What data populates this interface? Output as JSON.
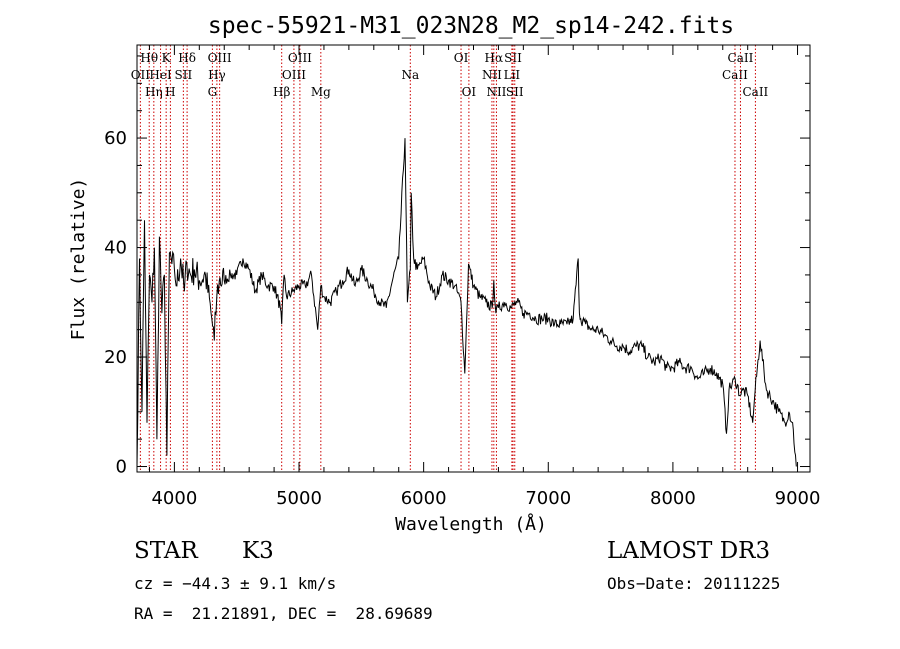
{
  "chart_data": {
    "type": "line",
    "title": "spec-55921-M31_023N28_M2_sp14-242.fits",
    "xlabel": "Wavelength (Å)",
    "ylabel": "Flux (relative)",
    "xlim": [
      3700,
      9100
    ],
    "ylim": [
      -1,
      77
    ],
    "xticks": [
      4000,
      5000,
      6000,
      7000,
      8000,
      9000
    ],
    "yticks": [
      0,
      20,
      40,
      60
    ],
    "series": [
      {
        "name": "flux",
        "x": [
          3700,
          3720,
          3740,
          3760,
          3780,
          3800,
          3820,
          3840,
          3860,
          3880,
          3900,
          3920,
          3940,
          3960,
          3980,
          4000,
          4020,
          4050,
          4080,
          4100,
          4130,
          4160,
          4200,
          4250,
          4300,
          4320,
          4340,
          4360,
          4400,
          4450,
          4500,
          4550,
          4600,
          4650,
          4700,
          4750,
          4800,
          4850,
          4861,
          4880,
          4900,
          4950,
          5000,
          5050,
          5100,
          5150,
          5175,
          5200,
          5250,
          5300,
          5350,
          5400,
          5450,
          5500,
          5550,
          5600,
          5650,
          5700,
          5750,
          5800,
          5850,
          5870,
          5893,
          5900,
          5920,
          5950,
          6000,
          6050,
          6100,
          6150,
          6200,
          6250,
          6300,
          6330,
          6360,
          6400,
          6450,
          6500,
          6550,
          6563,
          6580,
          6600,
          6650,
          6700,
          6750,
          6800,
          6850,
          6900,
          6950,
          7000,
          7050,
          7100,
          7150,
          7200,
          7240,
          7250,
          7260,
          7300,
          7350,
          7400,
          7450,
          7500,
          7550,
          7600,
          7650,
          7700,
          7750,
          7800,
          7850,
          7900,
          7950,
          8000,
          8050,
          8100,
          8150,
          8200,
          8250,
          8300,
          8350,
          8400,
          8430,
          8450,
          8500,
          8540,
          8560,
          8600,
          8640,
          8660,
          8700,
          8750,
          8800,
          8850,
          8900,
          8930,
          8960,
          8990
        ],
        "values": [
          0,
          38,
          10,
          45,
          8,
          35,
          30,
          40,
          5,
          42,
          28,
          35,
          2,
          39,
          37,
          36,
          33,
          38,
          32,
          37,
          35,
          36,
          34,
          35,
          27,
          23,
          31,
          34,
          34,
          35,
          35,
          38,
          36,
          32,
          35,
          33,
          33,
          29,
          26,
          35,
          31,
          32,
          33,
          33,
          35,
          25,
          33,
          31,
          30,
          32,
          34,
          36,
          33,
          36,
          34,
          32,
          30,
          29,
          34,
          38,
          60,
          30,
          36,
          50,
          38,
          36,
          38,
          33,
          31,
          35,
          34,
          33,
          30,
          17,
          37,
          33,
          31,
          30,
          29,
          34,
          28,
          29,
          30,
          29,
          30,
          28,
          28,
          27,
          27,
          27,
          26,
          26,
          26,
          27,
          38,
          28,
          27,
          26,
          25,
          25,
          24,
          23,
          22,
          22,
          21,
          22,
          22,
          20,
          19,
          20,
          18,
          18,
          19,
          18,
          18,
          16,
          17,
          18,
          17,
          15,
          6,
          14,
          16,
          13,
          14,
          13,
          8,
          14,
          23,
          14,
          12,
          10,
          8,
          10,
          8,
          0
        ]
      }
    ],
    "spectral_lines": [
      {
        "label": "OII",
        "wavelength": 3727,
        "row": 2
      },
      {
        "label": "Hθ",
        "wavelength": 3798,
        "row": 1
      },
      {
        "label": "Hη",
        "wavelength": 3835,
        "row": 3
      },
      {
        "label": "HeI",
        "wavelength": 3889,
        "row": 2
      },
      {
        "label": "K",
        "wavelength": 3934,
        "row": 1
      },
      {
        "label": "H",
        "wavelength": 3968,
        "row": 3
      },
      {
        "label": "SII",
        "wavelength": 4072,
        "row": 2
      },
      {
        "label": "Hδ",
        "wavelength": 4102,
        "row": 1
      },
      {
        "label": "G",
        "wavelength": 4305,
        "row": 3
      },
      {
        "label": "Hγ",
        "wavelength": 4341,
        "row": 2
      },
      {
        "label": "OIII",
        "wavelength": 4363,
        "row": 1
      },
      {
        "label": "Hβ",
        "wavelength": 4861,
        "row": 3
      },
      {
        "label": "OIII",
        "wavelength": 4959,
        "row": 2
      },
      {
        "label": "OIII",
        "wavelength": 5007,
        "row": 1
      },
      {
        "label": "Mg",
        "wavelength": 5175,
        "row": 3
      },
      {
        "label": "Na",
        "wavelength": 5893,
        "row": 2
      },
      {
        "label": "OI",
        "wavelength": 6300,
        "row": 1
      },
      {
        "label": "OI",
        "wavelength": 6363,
        "row": 3
      },
      {
        "label": "NII",
        "wavelength": 6548,
        "row": 2
      },
      {
        "label": "Hα",
        "wavelength": 6563,
        "row": 1
      },
      {
        "label": "NII",
        "wavelength": 6584,
        "row": 3
      },
      {
        "label": "SII",
        "wavelength": 6717,
        "row": 1
      },
      {
        "label": "LiI",
        "wavelength": 6708,
        "row": 2
      },
      {
        "label": "SII",
        "wavelength": 6731,
        "row": 3
      },
      {
        "label": "CaII",
        "wavelength": 8498,
        "row": 2
      },
      {
        "label": "CaII",
        "wavelength": 8542,
        "row": 1
      },
      {
        "label": "CaII",
        "wavelength": 8662,
        "row": 3
      }
    ]
  },
  "info": {
    "object_class": "STAR",
    "subclass": "K3",
    "survey": "LAMOST DR3",
    "cz": "cz = −44.3 ± 9.1 km/s",
    "obs_date": "Obs−Date: 20111225",
    "coords": "RA =  21.21891, DEC =  28.69689"
  }
}
